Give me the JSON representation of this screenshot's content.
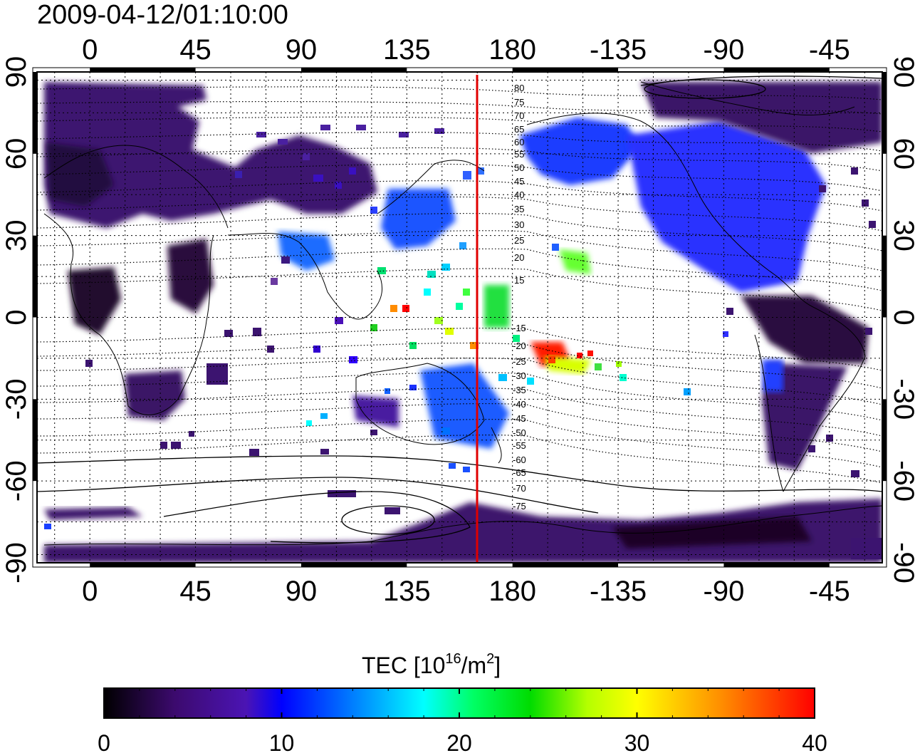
{
  "timestamp": "2009-04-12/01:10:00",
  "map": {
    "projection": "equirectangular",
    "lon_center": 157.5,
    "lat_range": [
      -90,
      90
    ],
    "lon_ticks_top": [
      "0",
      "45",
      "90",
      "135",
      "180",
      "-135",
      "-90",
      "-45"
    ],
    "lon_ticks_bottom": [
      "0",
      "45",
      "90",
      "135",
      "180",
      "-135",
      "-90",
      "-45"
    ],
    "lat_ticks_left": [
      "90",
      "60",
      "30",
      "0",
      "-30",
      "-60",
      "-90"
    ],
    "lat_ticks_right": [
      "90",
      "60",
      "30",
      "0",
      "-30",
      "-60",
      "-90"
    ],
    "grid": "dotted every 15 degrees",
    "terminator_line_lon": 170,
    "terminator_color": "#e00000"
  },
  "contours": {
    "labels_north": [
      "80",
      "75",
      "70",
      "65",
      "60",
      "55",
      "50",
      "45",
      "40",
      "35",
      "30",
      "25",
      "20",
      "15"
    ],
    "labels_south": [
      "-15",
      "-20",
      "-25",
      "-30",
      "-35",
      "-40",
      "-45",
      "-50",
      "-55",
      "-60",
      "-65",
      "-70",
      "-75"
    ]
  },
  "colorbar": {
    "title_prefix": "TEC  [10",
    "title_sup1": "16",
    "title_mid": "/m",
    "title_sup2": "2",
    "title_suffix": "]",
    "min": 0,
    "max": 40,
    "ticks": [
      "0",
      "10",
      "20",
      "30",
      "40"
    ],
    "colormap": [
      "#000000",
      "#3c0a6e",
      "#4b14b4",
      "#0000ff",
      "#0064ff",
      "#00ffff",
      "#00ff64",
      "#00dc00",
      "#b4ff00",
      "#ffff00",
      "#ff8c00",
      "#ff0000"
    ]
  },
  "tec_regions": [
    {
      "region": "europe-asia",
      "level": 4
    },
    {
      "region": "north-america",
      "level": 9
    },
    {
      "region": "japan",
      "level": 11
    },
    {
      "region": "pacific-south",
      "level": 32
    },
    {
      "region": "antarctica",
      "level": 3
    }
  ]
}
